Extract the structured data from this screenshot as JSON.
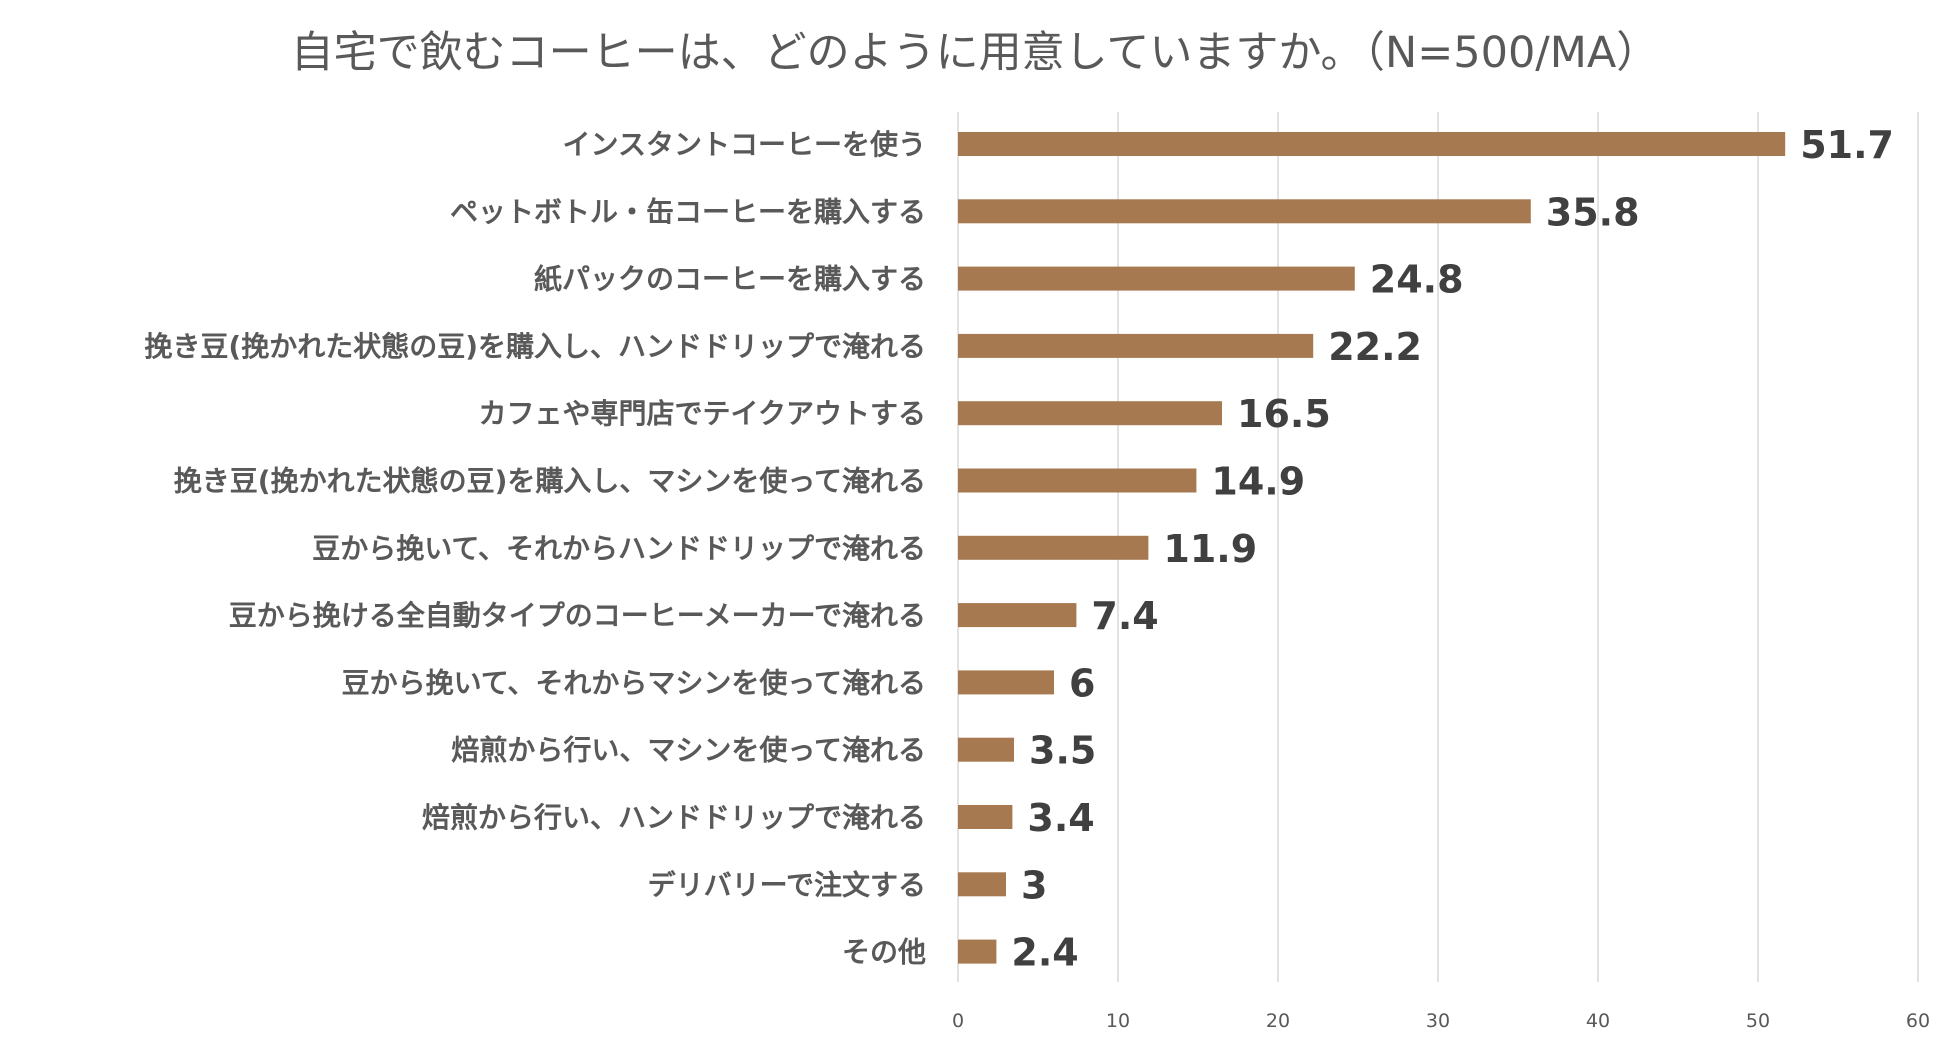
{
  "chart_data": {
    "type": "bar",
    "orientation": "horizontal",
    "title": "自宅で飲むコーヒーは、どのように用意していますか。（N=500/MA）",
    "categories": [
      "インスタントコーヒーを使う",
      "ペットボトル・缶コーヒーを購入する",
      "紙パックのコーヒーを購入する",
      "挽き豆(挽かれた状態の豆)を購入し、ハンドドリップで淹れる",
      "カフェや専門店でテイクアウトする",
      "挽き豆(挽かれた状態の豆)を購入し、マシンを使って淹れる",
      "豆から挽いて、それからハンドドリップで淹れる",
      "豆から挽ける全自動タイプのコーヒーメーカーで淹れる",
      "豆から挽いて、それからマシンを使って淹れる",
      "焙煎から行い、マシンを使って淹れる",
      "焙煎から行い、ハンドドリップで淹れる",
      "デリバリーで注文する",
      "その他"
    ],
    "values": [
      51.7,
      35.8,
      24.8,
      22.2,
      16.5,
      14.9,
      11.9,
      7.4,
      6,
      3.5,
      3.4,
      3,
      2.4
    ],
    "value_labels": [
      "51.7",
      "35.8",
      "24.8",
      "22.2",
      "16.5",
      "14.9",
      "11.9",
      "7.4",
      "6",
      "3.5",
      "3.4",
      "3",
      "2.4"
    ],
    "xlim": [
      0,
      60
    ],
    "xticks": [
      0,
      10,
      20,
      30,
      40,
      50,
      60
    ],
    "grid": true,
    "legend": "none",
    "bar_color": "#a67950"
  }
}
